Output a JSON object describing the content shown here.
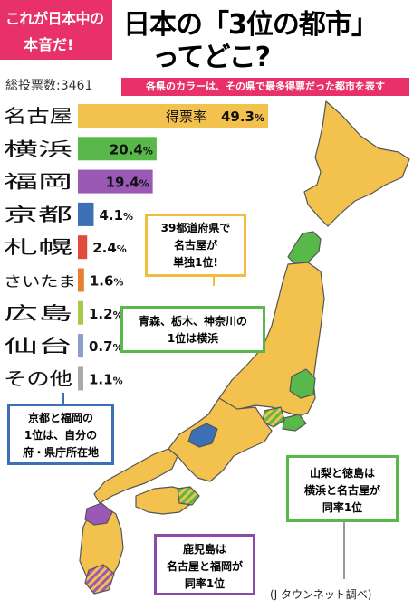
{
  "header": {
    "left_line1": "これが日本中の",
    "left_line2": "本音だ!",
    "title_line1": "日本の「3位の都市」",
    "title_line2": "ってどこ?"
  },
  "total_votes": "総投票数:3461",
  "note": "各県のカラーは、その県で最多得票だった都市を表す",
  "chart_data": {
    "type": "bar",
    "orientation": "horizontal",
    "value_label": "得票率",
    "unit": "%",
    "categories": [
      "名古屋",
      "横浜",
      "福岡",
      "京都",
      "札幌",
      "さいたま",
      "広島",
      "仙台",
      "その他"
    ],
    "values": [
      49.3,
      20.4,
      19.4,
      4.1,
      2.4,
      1.6,
      1.2,
      0.7,
      1.1
    ],
    "value_labels": [
      "49.3",
      "20.4",
      "19.4",
      "4.1",
      "2.4",
      "1.6",
      "1.2",
      "0.7",
      "1.1"
    ],
    "colors": [
      "#f2c14e",
      "#58b84a",
      "#9b59b6",
      "#3c6fb4",
      "#e24b3b",
      "#e87d34",
      "#a8c94c",
      "#8a9fc8",
      "#aaaaaa"
    ]
  },
  "map_colors": {
    "nagoya": "#f2c14e",
    "yokohama": "#58b84a",
    "fukuoka": "#9b59b6",
    "kyoto": "#3c6fb4",
    "sea": "#ffffff",
    "border": "#555555"
  },
  "callouts": {
    "yellow": [
      "39都道府県で",
      "名古屋が",
      "単独1位!"
    ],
    "green1": [
      "青森、栃木、神奈川の",
      "1位は横浜"
    ],
    "blue": [
      "京都と福岡の",
      "1位は、自分の",
      "府・県庁所在地"
    ],
    "green2": [
      "山梨と徳島は",
      "横浜と名古屋が",
      "同率1位"
    ],
    "purple": [
      "鹿児島は",
      "名古屋と福岡が",
      "同率1位"
    ]
  },
  "source": "(J タウンネット調べ)"
}
